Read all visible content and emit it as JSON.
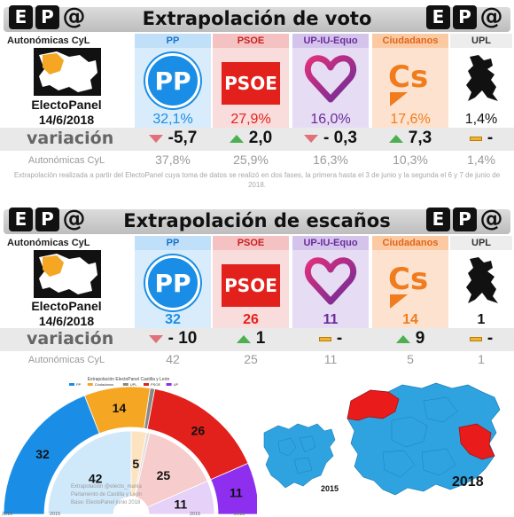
{
  "colors": {
    "pp": "#1a8ee6",
    "psoe": "#e3211c",
    "up": "#7b2ea8",
    "cs": "#f07c1e",
    "upl": "#555555",
    "leon_region": "#ea1b1b",
    "base_map": "#2fa3e0"
  },
  "brand": {
    "e": "E",
    "p": "P",
    "at": "@"
  },
  "voto": {
    "title": "Extrapolación de voto",
    "region_label": "Autonómicas CyL",
    "electopanel": "ElectoPanel",
    "date": "14/6/2018",
    "variacion_label": "variación",
    "prev_label": "Autonómicas CyL",
    "note": "Extrapolación realizada a partir del ElectoPanel cuya toma de datos se realizó en dos fases, la primera hasta el 3 de junio y la segunda el 6 y 7 de junio de 2018.",
    "parties": [
      {
        "key": "pp",
        "name": "PP",
        "value": "32,1%",
        "variation": "-5,7",
        "trend": "down",
        "prev": "37,8%"
      },
      {
        "key": "psoe",
        "name": "PSOE",
        "value": "27,9%",
        "variation": "2,0",
        "trend": "up",
        "prev": "25,9%"
      },
      {
        "key": "up",
        "name": "UP-IU-Equo",
        "value": "16,0%",
        "variation": "- 0,3",
        "trend": "down",
        "prev": "16,3%"
      },
      {
        "key": "cs",
        "name": "Ciudadanos",
        "value": "17,6%",
        "variation": "7,3",
        "trend": "up",
        "prev": "10,3%"
      },
      {
        "key": "upl",
        "name": "UPL",
        "value": "1,4%",
        "variation": "-",
        "trend": "equal",
        "prev": "1,4%"
      }
    ]
  },
  "escanos": {
    "title": "Extrapolación de escaños",
    "region_label": "Autonómicas CyL",
    "electopanel": "ElectoPanel",
    "date": "14/6/2018",
    "variacion_label": "variación",
    "prev_label": "Autonómicas CyL",
    "parties": [
      {
        "key": "pp",
        "name": "PP",
        "value": "32",
        "variation": "- 10",
        "trend": "down",
        "prev": "42"
      },
      {
        "key": "psoe",
        "name": "PSOE",
        "value": "26",
        "variation": "1",
        "trend": "up",
        "prev": "25"
      },
      {
        "key": "up",
        "name": "UP-IU-Equo",
        "value": "11",
        "variation": "-",
        "trend": "equal",
        "prev": "11"
      },
      {
        "key": "cs",
        "name": "Ciudadanos",
        "value": "14",
        "variation": "9",
        "trend": "up",
        "prev": "5"
      },
      {
        "key": "upl",
        "name": "UPL",
        "value": "1",
        "variation": "-",
        "trend": "equal",
        "prev": "1"
      }
    ]
  },
  "logos": {
    "pp": "PP",
    "psoe": "PSOE",
    "cs": "Cs"
  },
  "chart_data": [
    {
      "type": "hemicycle",
      "title": "Extrapolación ElectoPanel Castilla y León",
      "legend": [
        "PP",
        "Ciudadanos",
        "UPL",
        "PSOE",
        "UP"
      ],
      "legend_position": "top",
      "series": [
        {
          "name": "2018",
          "values": {
            "PP": 32,
            "Ciudadanos": 14,
            "UPL": 1,
            "PSOE": 26,
            "UP": 11
          }
        },
        {
          "name": "2015",
          "values": {
            "PP": 42,
            "Ciudadanos": 5,
            "UPL": 1,
            "PSOE": 25,
            "UP": 11
          }
        }
      ],
      "ring_labels": {
        "outer": "2018",
        "inner": "2015"
      },
      "watermark": [
        "Extrapolación @electo_mania",
        "Parlamento de Castilla y León",
        "Base: ElectoPanel junio 2018"
      ]
    },
    {
      "type": "map",
      "labels": [
        "2015",
        "2018"
      ]
    }
  ]
}
